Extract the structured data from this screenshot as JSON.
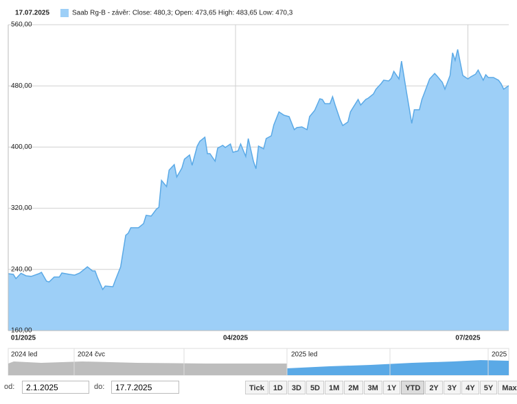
{
  "chart_data": {
    "type": "area",
    "date": "17.07.2025",
    "x": [
      "2025-01-02",
      "2025-01-04",
      "2025-01-05",
      "2025-01-07",
      "2025-01-09",
      "2025-01-11",
      "2025-01-14",
      "2025-01-15",
      "2025-01-17",
      "2025-01-18",
      "2025-01-20",
      "2025-01-22",
      "2025-01-23",
      "2025-01-26",
      "2025-01-28",
      "2025-01-30",
      "2025-02-01",
      "2025-02-02",
      "2025-02-04",
      "2025-02-05",
      "2025-02-06",
      "2025-02-08",
      "2025-02-09",
      "2025-02-12",
      "2025-02-13",
      "2025-02-15",
      "2025-02-17",
      "2025-02-18",
      "2025-02-19",
      "2025-02-22",
      "2025-02-24",
      "2025-02-25",
      "2025-02-27",
      "2025-03-01",
      "2025-03-02",
      "2025-03-03",
      "2025-03-05",
      "2025-03-06",
      "2025-03-08",
      "2025-03-09",
      "2025-03-11",
      "2025-03-12",
      "2025-03-14",
      "2025-03-15",
      "2025-03-17",
      "2025-03-18",
      "2025-03-20",
      "2025-03-21",
      "2025-03-22",
      "2025-03-24",
      "2025-03-25",
      "2025-03-27",
      "2025-03-28",
      "2025-03-30",
      "2025-03-31",
      "2025-04-02",
      "2025-04-03",
      "2025-04-05",
      "2025-04-06",
      "2025-04-08",
      "2025-04-09",
      "2025-04-10",
      "2025-04-12",
      "2025-04-13",
      "2025-04-15",
      "2025-04-16",
      "2025-04-18",
      "2025-04-20",
      "2025-04-22",
      "2025-04-24",
      "2025-04-25",
      "2025-04-27",
      "2025-04-29",
      "2025-04-30",
      "2025-05-02",
      "2025-05-04",
      "2025-05-05",
      "2025-05-06",
      "2025-05-08",
      "2025-05-09",
      "2025-05-10",
      "2025-05-12",
      "2025-05-13",
      "2025-05-15",
      "2025-05-16",
      "2025-05-17",
      "2025-05-19",
      "2025-05-20",
      "2025-05-22",
      "2025-05-23",
      "2025-05-25",
      "2025-05-26",
      "2025-05-28",
      "2025-05-29",
      "2025-05-31",
      "2025-06-01",
      "2025-06-02",
      "2025-06-04",
      "2025-06-05",
      "2025-06-07",
      "2025-06-09",
      "2025-06-10",
      "2025-06-12",
      "2025-06-13",
      "2025-06-14",
      "2025-06-16",
      "2025-06-18",
      "2025-06-19",
      "2025-06-21",
      "2025-06-22",
      "2025-06-24",
      "2025-06-25",
      "2025-06-26",
      "2025-06-27",
      "2025-06-29",
      "2025-07-01",
      "2025-07-02",
      "2025-07-04",
      "2025-07-05",
      "2025-07-07",
      "2025-07-08",
      "2025-07-09",
      "2025-07-11",
      "2025-07-13",
      "2025-07-14",
      "2025-07-15",
      "2025-07-17"
    ],
    "series": [
      {
        "name": "Saab Rg-B - závěr: Close: 480,3; Open: 473,65 High: 483,65 Low: 470,3",
        "color": "#9dcff7",
        "line_color": "#5aa9e6",
        "values": [
          234.4,
          233.5,
          228,
          235,
          231.7,
          230.9,
          234.4,
          236.2,
          224.6,
          223.7,
          230,
          230,
          235.3,
          233.5,
          232.6,
          235.3,
          240.7,
          243.4,
          238,
          238,
          229,
          213.8,
          218.3,
          217.4,
          226.4,
          243.4,
          284.7,
          287.4,
          294.5,
          294.5,
          300,
          310.7,
          309.8,
          318.7,
          321.3,
          356.4,
          348.3,
          369.9,
          377,
          360.9,
          372.6,
          384.2,
          389.6,
          376.1,
          401.3,
          407.5,
          412.9,
          391.4,
          391.4,
          381.5,
          398.6,
          402.2,
          399.5,
          404,
          393.2,
          395,
          404,
          387.8,
          411.1,
          381.5,
          371.7,
          401.3,
          397.7,
          411.1,
          414.7,
          429,
          446,
          441.6,
          439.8,
          422.8,
          425.5,
          426.4,
          422.8,
          439.8,
          447.9,
          463.1,
          462.2,
          456.8,
          456.8,
          465.8,
          455,
          435.3,
          428.2,
          432.7,
          446,
          451.5,
          462.2,
          455,
          462.2,
          464,
          469.4,
          475.7,
          482.9,
          487.4,
          486.5,
          490,
          499,
          489.1,
          512.4,
          471.2,
          430.9,
          448.8,
          448.8,
          462.2,
          471.2,
          489.1,
          496.2,
          492.6,
          484.6,
          475.7,
          493.6,
          523.2,
          513.4,
          527.7,
          493.6,
          489.1,
          491.7,
          495.3,
          500.7,
          487.4,
          494.5,
          490.9,
          490.9,
          487.4,
          482.9,
          475.7,
          480.3
        ]
      }
    ],
    "xlim": [
      "2025-01-02",
      "2025-07-17"
    ],
    "xticks": [
      {
        "value": "2025-01-02",
        "label": "01/2025"
      },
      {
        "value": "2025-04-01",
        "label": "04/2025"
      },
      {
        "value": "2025-07-01",
        "label": "07/2025"
      }
    ],
    "ylim": [
      160,
      560
    ],
    "yticks": [
      {
        "value": 160,
        "label": "160,00"
      },
      {
        "value": 240,
        "label": "240,00"
      },
      {
        "value": 320,
        "label": "320,00"
      },
      {
        "value": 400,
        "label": "400,00"
      },
      {
        "value": 480,
        "label": "480,00"
      },
      {
        "value": 560,
        "label": "560,00"
      }
    ],
    "grid": true
  },
  "navigator": {
    "labels": [
      "2024 led",
      "2024 čvc",
      "2025 led",
      "2025"
    ]
  },
  "controls": {
    "from_label": "od:",
    "from": "2.1.2025",
    "to_label": "do:",
    "to": "17.7.2025",
    "buttons": [
      "Tick",
      "1D",
      "3D",
      "5D",
      "1M",
      "2M",
      "3M",
      "1Y",
      "YTD",
      "2Y",
      "3Y",
      "4Y",
      "5Y",
      "Max"
    ],
    "active": "YTD"
  }
}
